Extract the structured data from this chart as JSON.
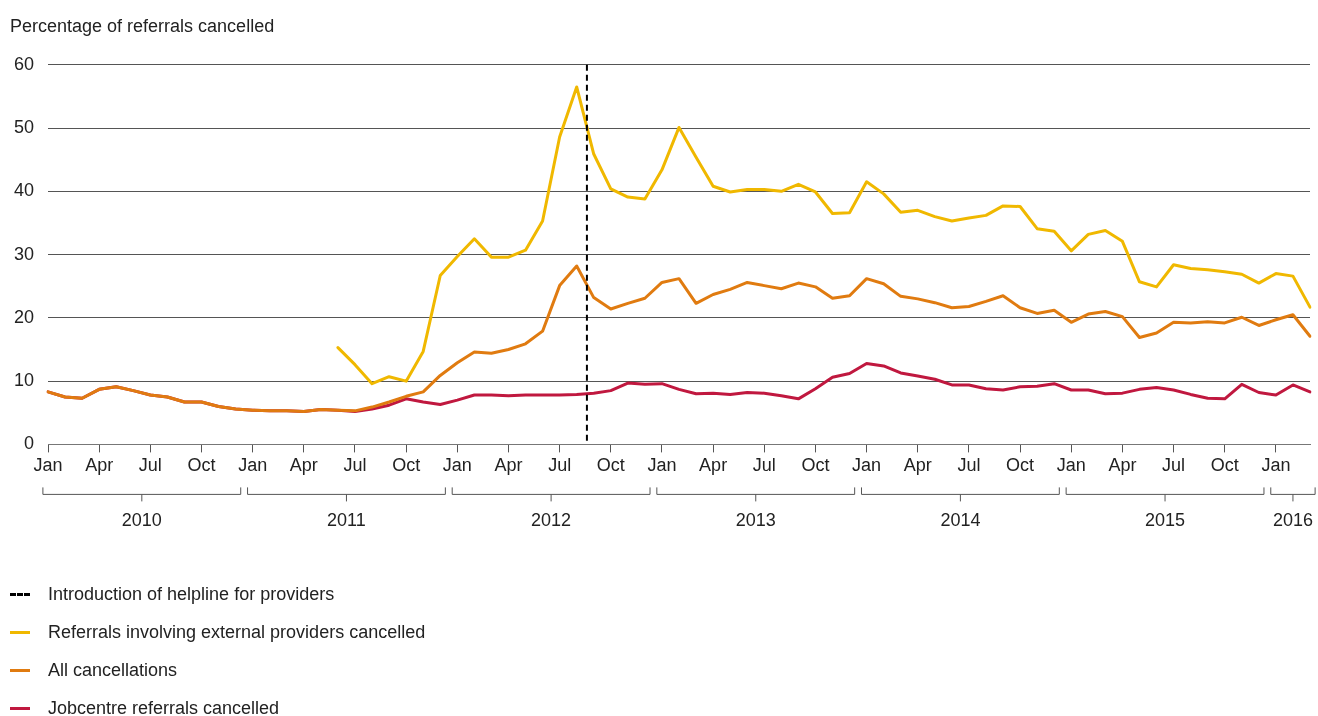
{
  "chart_data": {
    "type": "line",
    "ylabel": "Percentage of referrals cancelled",
    "categories": [
      "Jan",
      null,
      null,
      "Apr",
      null,
      null,
      "Jul",
      null,
      null,
      "Oct",
      null,
      null,
      "Jan",
      null,
      null,
      "Apr",
      null,
      null,
      "Jul",
      null,
      null,
      "Oct",
      null,
      null,
      "Jan",
      null,
      null,
      "Apr",
      null,
      null,
      "Jul",
      null,
      null,
      "Oct",
      null,
      null,
      "Jan",
      null,
      null,
      "Apr",
      null,
      null,
      "Jul",
      null,
      null,
      "Oct",
      null,
      null,
      "Jan",
      null,
      null,
      "Apr",
      null,
      null,
      "Jul",
      null,
      null,
      "Oct",
      null,
      null,
      "Jan",
      null,
      null,
      "Apr",
      null,
      null,
      "Jul",
      null,
      null,
      "Oct",
      null,
      null,
      "Jan",
      null,
      null
    ],
    "series": [
      {
        "name": "Referrals involving external providers cancelled",
        "color": "#f0b800",
        "values": [
          null,
          null,
          null,
          null,
          null,
          null,
          null,
          null,
          null,
          null,
          null,
          null,
          null,
          null,
          null,
          null,
          null,
          15.3,
          12.6,
          9.6,
          10.7,
          10.0,
          14.7,
          26.7,
          29.7,
          32.5,
          29.6,
          29.6,
          30.7,
          35.3,
          48.6,
          56.5,
          45.9,
          40.4,
          39.1,
          38.8,
          43.4,
          50.1,
          45.4,
          40.8,
          39.9,
          40.3,
          40.3,
          40.0,
          41.1,
          39.9,
          36.5,
          36.6,
          41.5,
          39.6,
          36.7,
          37.0,
          36.0,
          35.3,
          35.8,
          36.2,
          37.7,
          37.6,
          34.1,
          33.7,
          30.6,
          33.2,
          33.8,
          32.1,
          25.7,
          24.9,
          28.4,
          27.8,
          27.6,
          27.3,
          26.9,
          25.5,
          27.0,
          26.6,
          21.7
        ]
      },
      {
        "name": "All cancellations",
        "color": "#e07b10",
        "values": [
          8.3,
          7.5,
          7.3,
          8.7,
          9.1,
          8.5,
          7.8,
          7.5,
          6.7,
          6.7,
          6.0,
          5.6,
          5.4,
          5.3,
          5.3,
          5.2,
          5.5,
          5.4,
          5.3,
          5.9,
          6.7,
          7.6,
          8.3,
          10.9,
          12.9,
          14.6,
          14.4,
          15.0,
          15.9,
          17.9,
          25.1,
          28.2,
          23.2,
          21.4,
          22.3,
          23.1,
          25.6,
          26.2,
          22.3,
          23.7,
          24.5,
          25.6,
          25.1,
          24.6,
          25.5,
          24.9,
          23.1,
          23.5,
          26.2,
          25.4,
          23.4,
          23.0,
          22.4,
          21.6,
          21.8,
          22.6,
          23.5,
          21.6,
          20.7,
          21.2,
          19.3,
          20.6,
          21.0,
          20.2,
          16.9,
          17.6,
          19.3,
          19.2,
          19.4,
          19.2,
          20.1,
          18.8,
          19.7,
          20.5,
          17.1
        ]
      },
      {
        "name": "Jobcentre referrals cancelled",
        "color": "#c0183f",
        "values": [
          8.3,
          7.5,
          7.3,
          8.7,
          9.1,
          8.5,
          7.8,
          7.5,
          6.7,
          6.7,
          6.0,
          5.6,
          5.4,
          5.3,
          5.3,
          5.2,
          5.5,
          5.4,
          5.2,
          5.6,
          6.2,
          7.2,
          6.7,
          6.3,
          7.0,
          7.8,
          7.8,
          7.7,
          7.8,
          7.8,
          7.8,
          7.9,
          8.1,
          8.5,
          9.7,
          9.5,
          9.6,
          8.7,
          8.0,
          8.1,
          7.9,
          8.2,
          8.1,
          7.7,
          7.2,
          8.8,
          10.6,
          11.2,
          12.8,
          12.4,
          11.3,
          10.8,
          10.3,
          9.4,
          9.4,
          8.8,
          8.6,
          9.1,
          9.2,
          9.6,
          8.6,
          8.6,
          8.0,
          8.1,
          8.7,
          9.0,
          8.6,
          7.9,
          7.3,
          7.2,
          9.5,
          8.2,
          7.8,
          9.4,
          8.3
        ]
      }
    ],
    "ylim": [
      0,
      60
    ],
    "yticks": [
      0,
      10,
      20,
      30,
      40,
      50,
      60
    ],
    "ref_lines": [
      {
        "axis": "x",
        "label": "Introduction of helpline for providers",
        "color": "#000000",
        "line_style": "dashed"
      }
    ],
    "annotations": [
      "2010",
      "2011",
      "2012",
      "2013",
      "2014",
      "2015",
      "2016"
    ],
    "grid": "y",
    "legend": "bottom",
    "marker": "none",
    "line_style": "solid"
  }
}
